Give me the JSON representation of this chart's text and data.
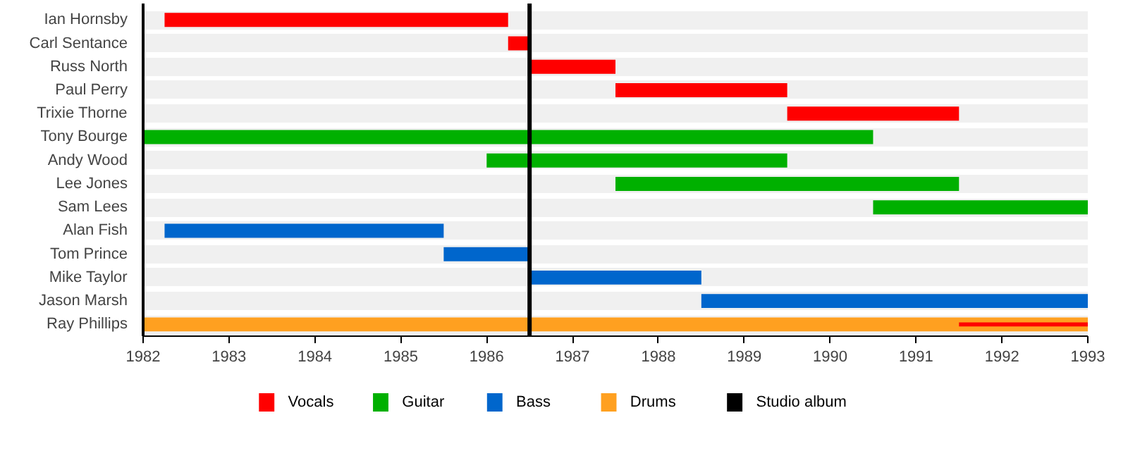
{
  "chart_data": {
    "type": "bar",
    "orientation": "horizontal",
    "categories": [
      "Ian Hornsby",
      "Carl Sentance",
      "Russ North",
      "Paul Perry",
      "Trixie Thorne",
      "Tony Bourge",
      "Andy Wood",
      "Lee Jones",
      "Sam Lees",
      "Alan Fish",
      "Tom Prince",
      "Mike Taylor",
      "Jason Marsh",
      "Ray Phillips"
    ],
    "xlim": [
      1982,
      1993
    ],
    "xticks": [
      1982,
      1983,
      1984,
      1985,
      1986,
      1987,
      1988,
      1989,
      1990,
      1991,
      1992,
      1993
    ],
    "grid": "y",
    "legend": "bottom",
    "series": [
      {
        "name": "Vocals",
        "color": "#ff0000",
        "base": [
          1982.25,
          1986.25,
          1986.5,
          1987.5,
          1989.5,
          null,
          null,
          null,
          null,
          null,
          null,
          null,
          null,
          1991.5
        ],
        "values": [
          4,
          0.25,
          1,
          2,
          2,
          null,
          null,
          null,
          null,
          null,
          null,
          null,
          null,
          1.5
        ]
      },
      {
        "name": "Guitar",
        "color": "#00b000",
        "base": [
          null,
          null,
          null,
          null,
          null,
          1982,
          1986,
          1987.5,
          1990.5,
          null,
          null,
          null,
          null,
          null
        ],
        "values": [
          null,
          null,
          null,
          null,
          null,
          8.5,
          3.5,
          4,
          2.5,
          null,
          null,
          null,
          null,
          null
        ]
      },
      {
        "name": "Bass",
        "color": "#0066cc",
        "base": [
          null,
          null,
          null,
          null,
          null,
          null,
          null,
          null,
          null,
          1982.25,
          1985.5,
          1986.5,
          1988.5,
          null
        ],
        "values": [
          null,
          null,
          null,
          null,
          null,
          null,
          null,
          null,
          null,
          3.25,
          1,
          2,
          4.5,
          null
        ]
      },
      {
        "name": "Drums",
        "color": "#ffa020",
        "base": [
          null,
          null,
          null,
          null,
          null,
          null,
          null,
          null,
          null,
          null,
          null,
          null,
          null,
          1982
        ],
        "values": [
          null,
          null,
          null,
          null,
          null,
          null,
          null,
          null,
          null,
          null,
          null,
          null,
          null,
          11
        ]
      }
    ],
    "ref_lines": [
      {
        "axis": "x",
        "value": 1986.5,
        "label": "Studio album",
        "color": "#000000"
      }
    ]
  }
}
